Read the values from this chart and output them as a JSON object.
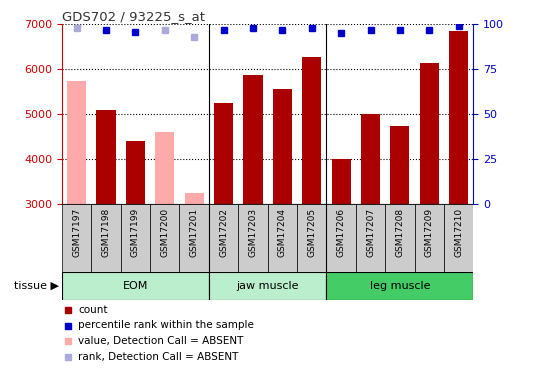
{
  "title": "GDS702 / 93225_s_at",
  "samples": [
    "GSM17197",
    "GSM17198",
    "GSM17199",
    "GSM17200",
    "GSM17201",
    "GSM17202",
    "GSM17203",
    "GSM17204",
    "GSM17205",
    "GSM17206",
    "GSM17207",
    "GSM17208",
    "GSM17209",
    "GSM17210"
  ],
  "bar_values": [
    5750,
    5100,
    4400,
    4600,
    3250,
    5250,
    5875,
    5575,
    6275,
    4000,
    5000,
    4750,
    6150,
    6850
  ],
  "bar_absent": [
    true,
    false,
    false,
    true,
    true,
    false,
    false,
    false,
    false,
    false,
    false,
    false,
    false,
    false
  ],
  "percentile_values": [
    98,
    97,
    96,
    97,
    93,
    97,
    98,
    97,
    98,
    95,
    97,
    97,
    97,
    99
  ],
  "percentile_absent": [
    true,
    false,
    false,
    true,
    true,
    false,
    false,
    false,
    false,
    false,
    false,
    false,
    false,
    false
  ],
  "ylim_left": [
    3000,
    7000
  ],
  "ylim_right": [
    0,
    100
  ],
  "yticks_left": [
    3000,
    4000,
    5000,
    6000,
    7000
  ],
  "yticks_right": [
    0,
    25,
    50,
    75,
    100
  ],
  "groups": [
    {
      "label": "EOM",
      "start": 0,
      "end": 5,
      "color": "#aaeebb"
    },
    {
      "label": "jaw muscle",
      "start": 5,
      "end": 9,
      "color": "#aaeebb"
    },
    {
      "label": "leg muscle",
      "start": 9,
      "end": 14,
      "color": "#55dd77"
    }
  ],
  "group_dividers": [
    5,
    9
  ],
  "bar_color_present": "#aa0000",
  "bar_color_absent": "#ffaaaa",
  "dot_color_present": "#0000cc",
  "dot_color_absent": "#aaaadd",
  "plot_bg_color": "#ffffff",
  "xtick_bg_color": "#cccccc",
  "grid_color": "black",
  "title_color": "#333333",
  "left_axis_color": "#cc0000",
  "right_axis_color": "#0000cc",
  "bar_width": 0.65,
  "tissue_label": "tissue",
  "legend_items": [
    {
      "color": "#aa0000",
      "shape": "s",
      "label": "count"
    },
    {
      "color": "#0000cc",
      "shape": "s",
      "label": "percentile rank within the sample"
    },
    {
      "color": "#ffaaaa",
      "shape": "s",
      "label": "value, Detection Call = ABSENT"
    },
    {
      "color": "#aaaadd",
      "shape": "s",
      "label": "rank, Detection Call = ABSENT"
    }
  ]
}
